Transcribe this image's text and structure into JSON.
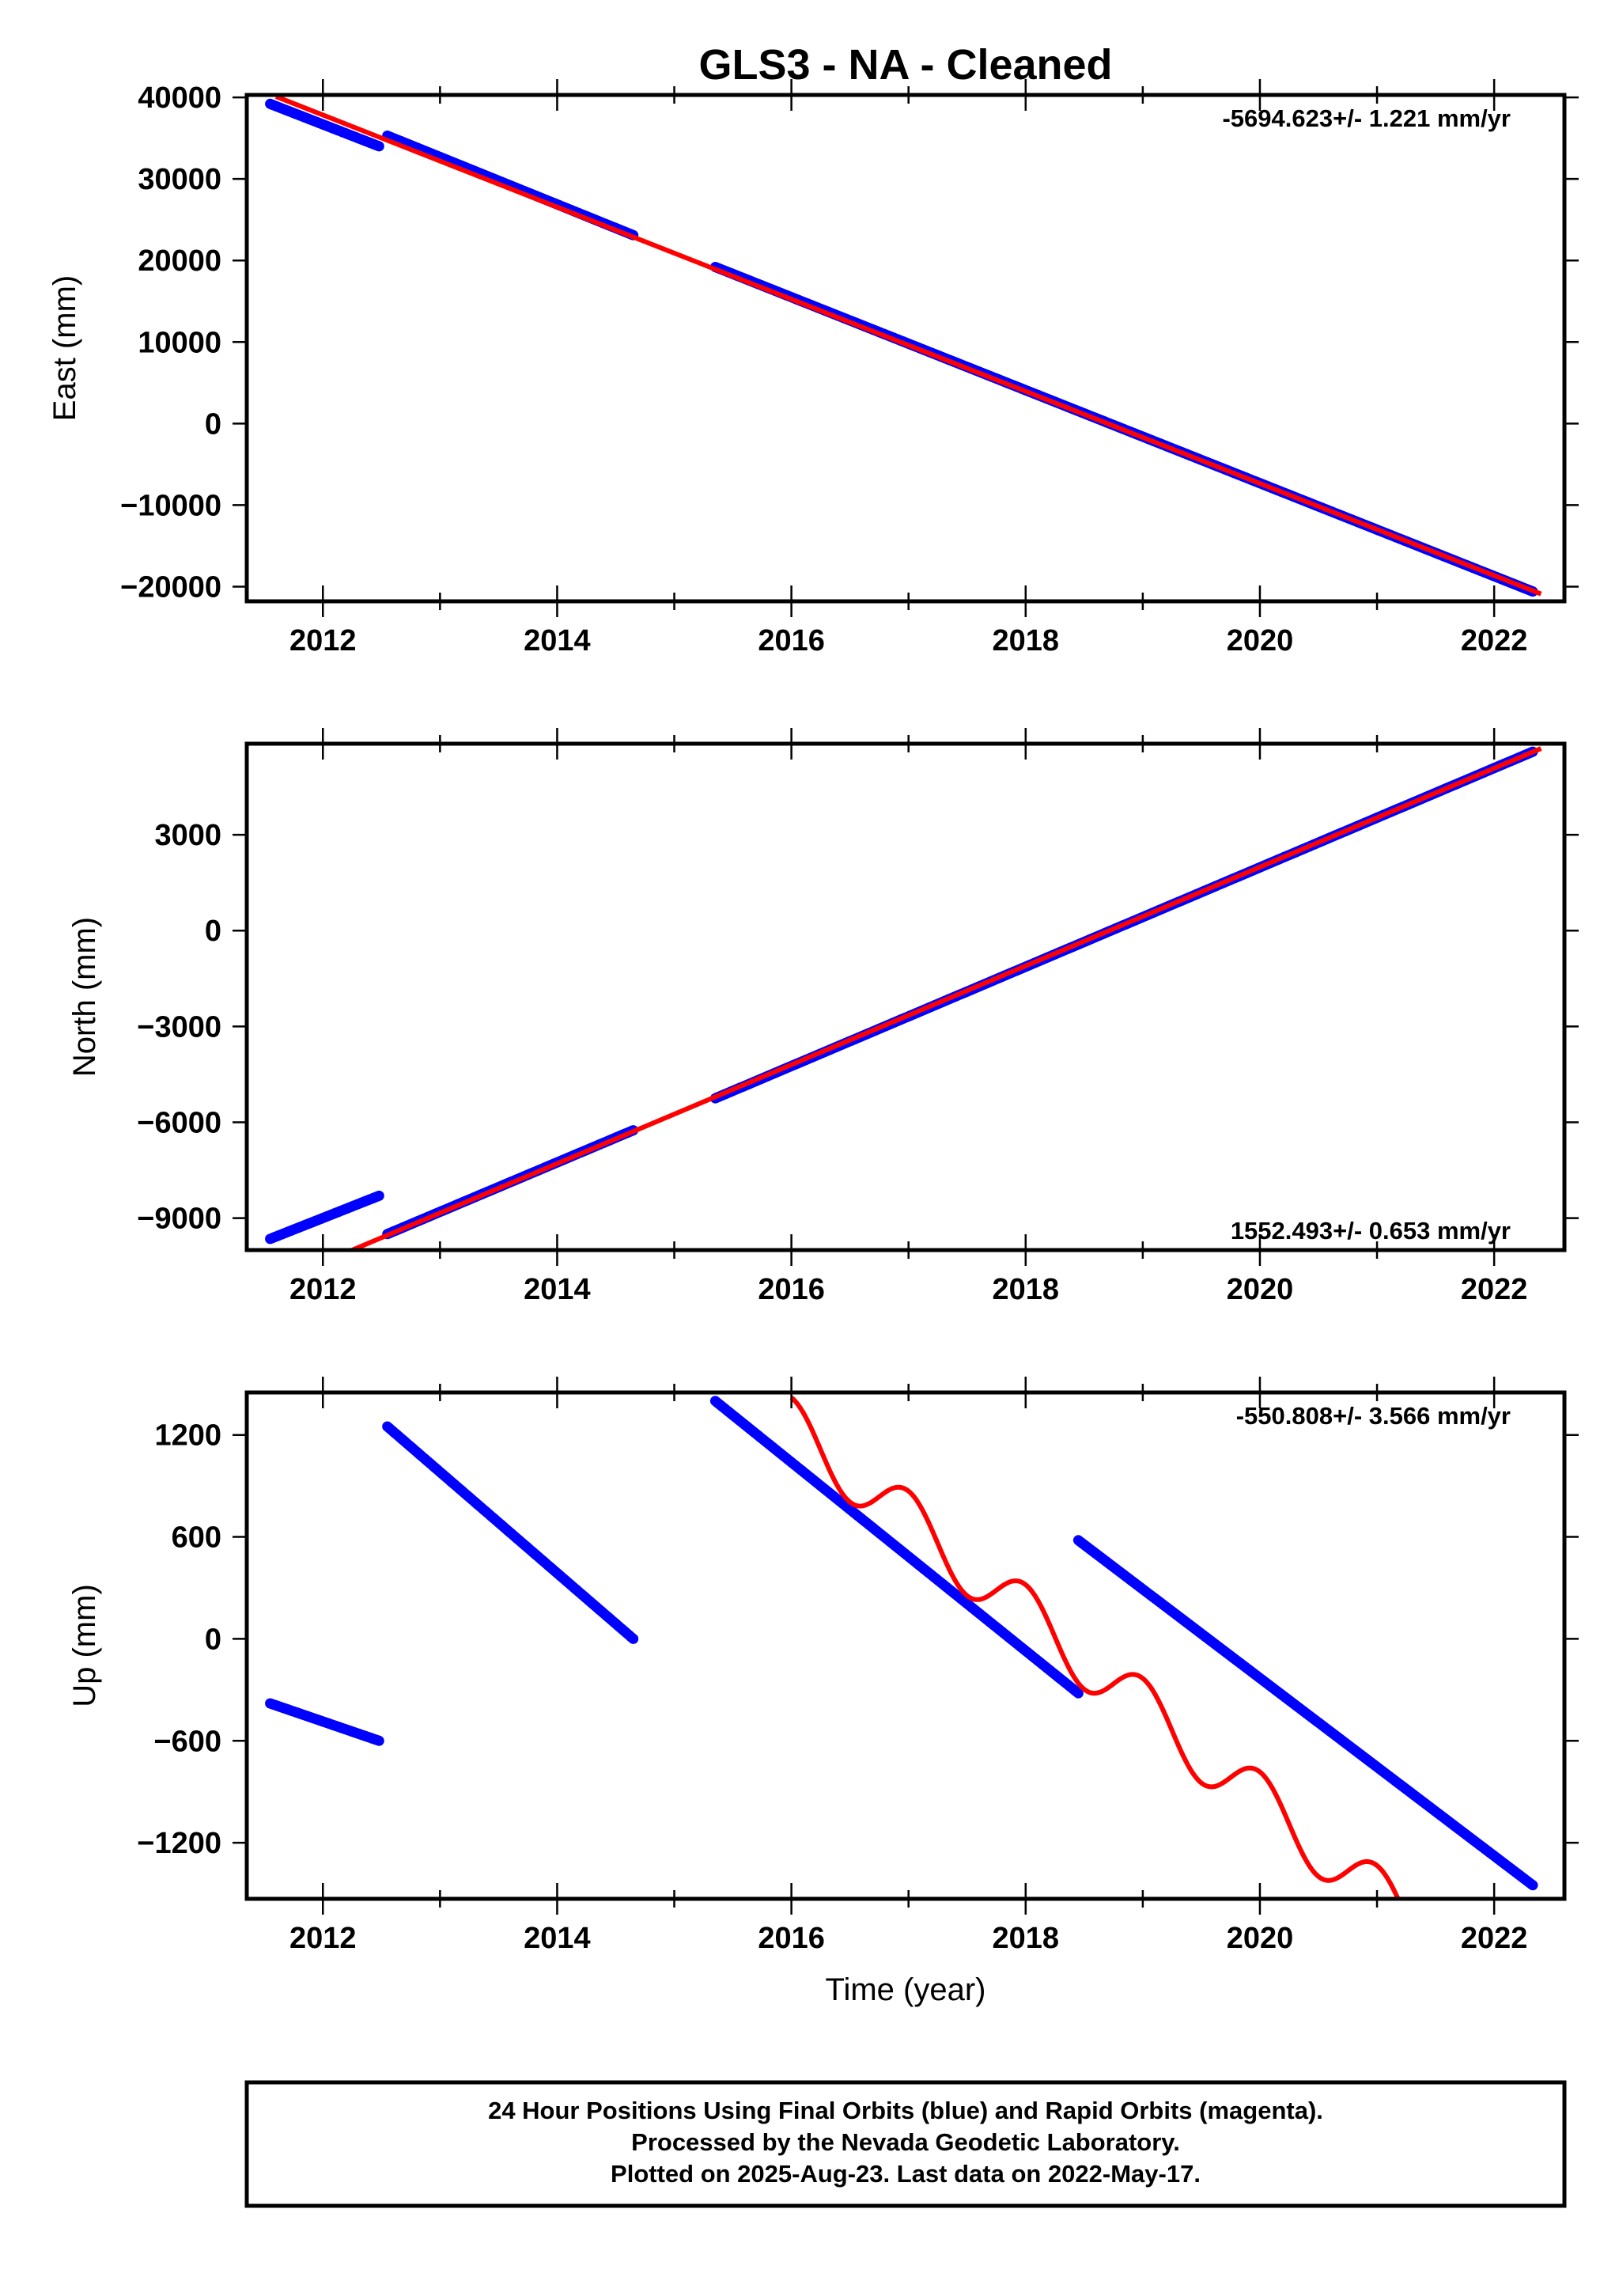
{
  "title": "GLS3  - NA - Cleaned",
  "chart_data": [
    {
      "type": "scatter",
      "panel": "east",
      "ylabel": "East (mm)",
      "xlabel": "",
      "xlim": [
        2011.35,
        2022.6
      ],
      "ylim": [
        -21800,
        40300
      ],
      "x_ticks": [
        2012,
        2014,
        2016,
        2018,
        2020,
        2022
      ],
      "y_ticks": [
        40000,
        30000,
        20000,
        10000,
        0,
        -10000,
        -20000
      ],
      "y_tick_labels": [
        "40000",
        "30000",
        "20000",
        "10000",
        "0",
        "−10000",
        "−20000"
      ],
      "rate_text": "-5694.623+/- 1.221 mm/yr",
      "rate_position": "top-right",
      "series": [
        {
          "color": "#0000ff",
          "kind": "points",
          "segments": [
            {
              "x0": 2011.55,
              "x1": 2012.48,
              "y0": 39200,
              "y1": 34000
            },
            {
              "x0": 2012.55,
              "x1": 2014.65,
              "y0": 35300,
              "y1": 23100
            },
            {
              "x0": 2015.35,
              "x1": 2022.33,
              "y0": 19200,
              "y1": -20600
            }
          ]
        },
        {
          "color": "#ff0000",
          "kind": "line",
          "x": [
            2011.6,
            2022.4
          ],
          "y": [
            40100,
            -20900
          ]
        }
      ]
    },
    {
      "type": "scatter",
      "panel": "north",
      "ylabel": "North (mm)",
      "xlabel": "",
      "xlim": [
        2011.35,
        2022.6
      ],
      "ylim": [
        -10000,
        5850
      ],
      "x_ticks": [
        2012,
        2014,
        2016,
        2018,
        2020,
        2022
      ],
      "y_ticks": [
        3000,
        0,
        -3000,
        -6000,
        -9000
      ],
      "y_tick_labels": [
        "3000",
        "0",
        "−3000",
        "−6000",
        "−9000"
      ],
      "rate_text": "1552.493+/- 0.653 mm/yr",
      "rate_position": "bottom-right",
      "series": [
        {
          "color": "#0000ff",
          "kind": "points",
          "segments": [
            {
              "x0": 2011.55,
              "x1": 2012.48,
              "y0": -9650,
              "y1": -8300
            },
            {
              "x0": 2012.55,
              "x1": 2014.65,
              "y0": -9500,
              "y1": -6250
            },
            {
              "x0": 2015.35,
              "x1": 2022.33,
              "y0": -5250,
              "y1": 5600
            }
          ]
        },
        {
          "color": "#ff0000",
          "kind": "line",
          "x": [
            2012.25,
            2022.4
          ],
          "y": [
            -10000,
            5700
          ]
        }
      ]
    },
    {
      "type": "scatter",
      "panel": "up",
      "ylabel": "Up (mm)",
      "xlabel": "Time (year)",
      "xlim": [
        2011.35,
        2022.6
      ],
      "ylim": [
        -1530,
        1450
      ],
      "x_ticks": [
        2012,
        2014,
        2016,
        2018,
        2020,
        2022
      ],
      "x_tick_labels": [
        "2012",
        "2014",
        "2016",
        "2018",
        "2020",
        "2022"
      ],
      "y_ticks": [
        1200,
        600,
        0,
        -600,
        -1200
      ],
      "y_tick_labels": [
        "1200",
        "600",
        "0",
        "−600",
        "−1200"
      ],
      "rate_text": "-550.808+/- 3.566 mm/yr",
      "rate_position": "top-right",
      "series": [
        {
          "color": "#0000ff",
          "kind": "points",
          "segments": [
            {
              "x0": 2011.55,
              "x1": 2012.48,
              "y0": -380,
              "y1": -600
            },
            {
              "x0": 2012.55,
              "x1": 2014.65,
              "y0": 1250,
              "y1": 0
            },
            {
              "x0": 2015.35,
              "x1": 2018.45,
              "y0": 1400,
              "y1": -320
            },
            {
              "x0": 2018.45,
              "x1": 2022.33,
              "y0": 580,
              "y1": -1450
            }
          ]
        },
        {
          "color": "#ff0000",
          "kind": "wave",
          "x_start": 2016.0,
          "x_end": 2021.4,
          "trend_start": 1250,
          "trend_per_year": -550.8,
          "amplitude": 170,
          "period_years": 1.0
        }
      ]
    }
  ],
  "footer": {
    "line1": "24 Hour Positions Using Final Orbits (blue) and Rapid Orbits (magenta).",
    "line2": "Processed by the Nevada Geodetic Laboratory.",
    "line3": "Plotted on 2025-Aug-23. Last data on 2022-May-17."
  }
}
